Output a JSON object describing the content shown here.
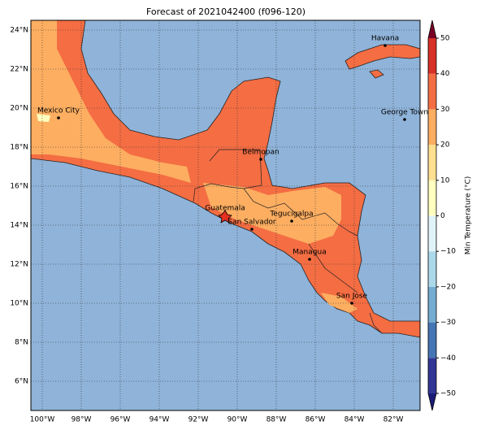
{
  "title": "Forecast of 2021042400 (f096-120)",
  "map": {
    "lon_ticks": [
      {
        "value": -100,
        "label": "100°W"
      },
      {
        "value": -98,
        "label": "98°W"
      },
      {
        "value": -96,
        "label": "96°W"
      },
      {
        "value": -94,
        "label": "94°W"
      },
      {
        "value": -92,
        "label": "92°W"
      },
      {
        "value": -90,
        "label": "90°W"
      },
      {
        "value": -88,
        "label": "88°W"
      },
      {
        "value": -86,
        "label": "86°W"
      },
      {
        "value": -84,
        "label": "84°W"
      },
      {
        "value": -82,
        "label": "82°W"
      }
    ],
    "lat_ticks": [
      {
        "value": 24,
        "label": "24°N"
      },
      {
        "value": 22,
        "label": "22°N"
      },
      {
        "value": 20,
        "label": "20°N"
      },
      {
        "value": 18,
        "label": "18°N"
      },
      {
        "value": 16,
        "label": "16°N"
      },
      {
        "value": 14,
        "label": "14°N"
      },
      {
        "value": 12,
        "label": "12°N"
      },
      {
        "value": 10,
        "label": "10°N"
      },
      {
        "value": 8,
        "label": "8°N"
      },
      {
        "value": 6,
        "label": "6°N"
      }
    ],
    "cities": [
      "Mexico City",
      "Havana",
      "George Town",
      "Belmopan",
      "Guatemala",
      "Tegucigalpa",
      "San Salvador",
      "Managua",
      "San Jose"
    ]
  },
  "colorbar": {
    "label": "Min Temperature (°C)",
    "ticks": [
      50,
      40,
      30,
      20,
      10,
      0,
      {
        "value": -10,
        "label": "−10"
      },
      {
        "value": -20,
        "label": "−20"
      },
      {
        "value": -30,
        "label": "−30"
      },
      {
        "value": -40,
        "label": "−40"
      },
      {
        "value": -50,
        "label": "−50"
      }
    ],
    "colors": [
      "#1c1c78",
      "#313695",
      "#4575b4",
      "#74add1",
      "#abd9e9",
      "#e0f3f8",
      "#ffffbf",
      "#fee090",
      "#fdae61",
      "#f46d43",
      "#d73027",
      "#7a0026"
    ]
  }
}
